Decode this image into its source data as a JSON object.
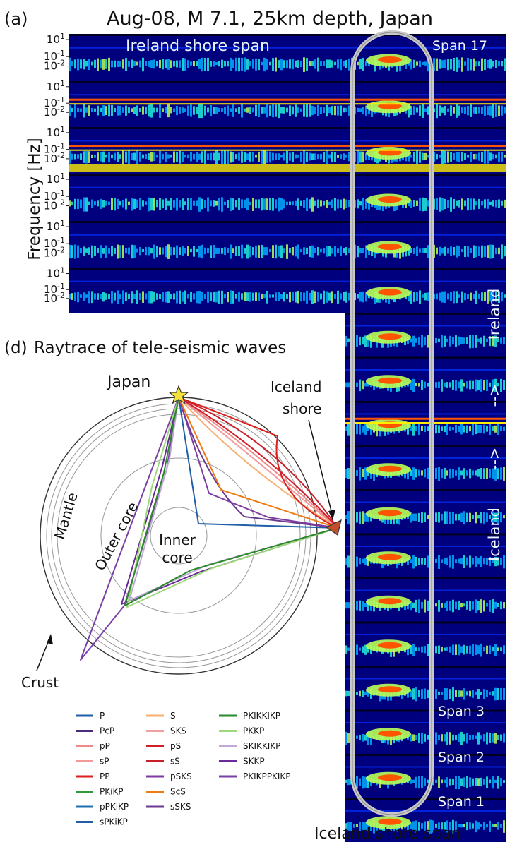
{
  "panel_a": {
    "label": "(a)",
    "title": "Aug-08, M 7.1, 25km depth, Japan",
    "ylabel": "Frequency [Hz]",
    "tick_labels": [
      "10^1",
      "10^-1",
      "10^-2"
    ],
    "top_overlay": "Ireland shore span",
    "bottom_overlay": "Iceland shore span",
    "direction_labels": [
      "Ireland",
      "-->",
      "-->",
      "Iceland"
    ],
    "span_labels": [
      "Span 17",
      "Span 3",
      "Span 2",
      "Span 1"
    ],
    "colormap": [
      "#00007f",
      "#0022dd",
      "#00aaff",
      "#22eedd",
      "#bbff55",
      "#ffee00",
      "#ff5500",
      "#990000"
    ]
  },
  "chart_data": {
    "type": "diagram",
    "title": "Raytrace of tele-seismic waves",
    "panel_label": "(d)",
    "source": "Japan",
    "receiver_lines": [
      "Iceland",
      "shore"
    ],
    "regions": [
      "Mantle",
      "Outer core",
      "Inner",
      "core",
      "Crust"
    ],
    "series": [
      {
        "name": "P",
        "color": "#1f5fa8"
      },
      {
        "name": "PcP",
        "color": "#4a2a7a"
      },
      {
        "name": "pP",
        "color": "#f08a8a"
      },
      {
        "name": "sP",
        "color": "#f29a9a"
      },
      {
        "name": "PP",
        "color": "#dd1f1f"
      },
      {
        "name": "PKiKP",
        "color": "#2e9a3a"
      },
      {
        "name": "pPKiKP",
        "color": "#1f6fb0"
      },
      {
        "name": "sPKiKP",
        "color": "#1f5fa8"
      },
      {
        "name": "S",
        "color": "#f5b070"
      },
      {
        "name": "SKS",
        "color": "#f0a0a0"
      },
      {
        "name": "pS",
        "color": "#d11f2a"
      },
      {
        "name": "sS",
        "color": "#c81f2a"
      },
      {
        "name": "pSKS",
        "color": "#7d3aa0"
      },
      {
        "name": "ScS",
        "color": "#f07a10"
      },
      {
        "name": "sSKS",
        "color": "#6a3a90"
      },
      {
        "name": "PKIKKIKP",
        "color": "#2a8a2a"
      },
      {
        "name": "PKKP",
        "color": "#9fd87a"
      },
      {
        "name": "SKIKKIKP",
        "color": "#c0a8d8"
      },
      {
        "name": "SKKP",
        "color": "#6a2a9a"
      },
      {
        "name": "PKIKPPKIKP",
        "color": "#7a40a8"
      }
    ]
  }
}
